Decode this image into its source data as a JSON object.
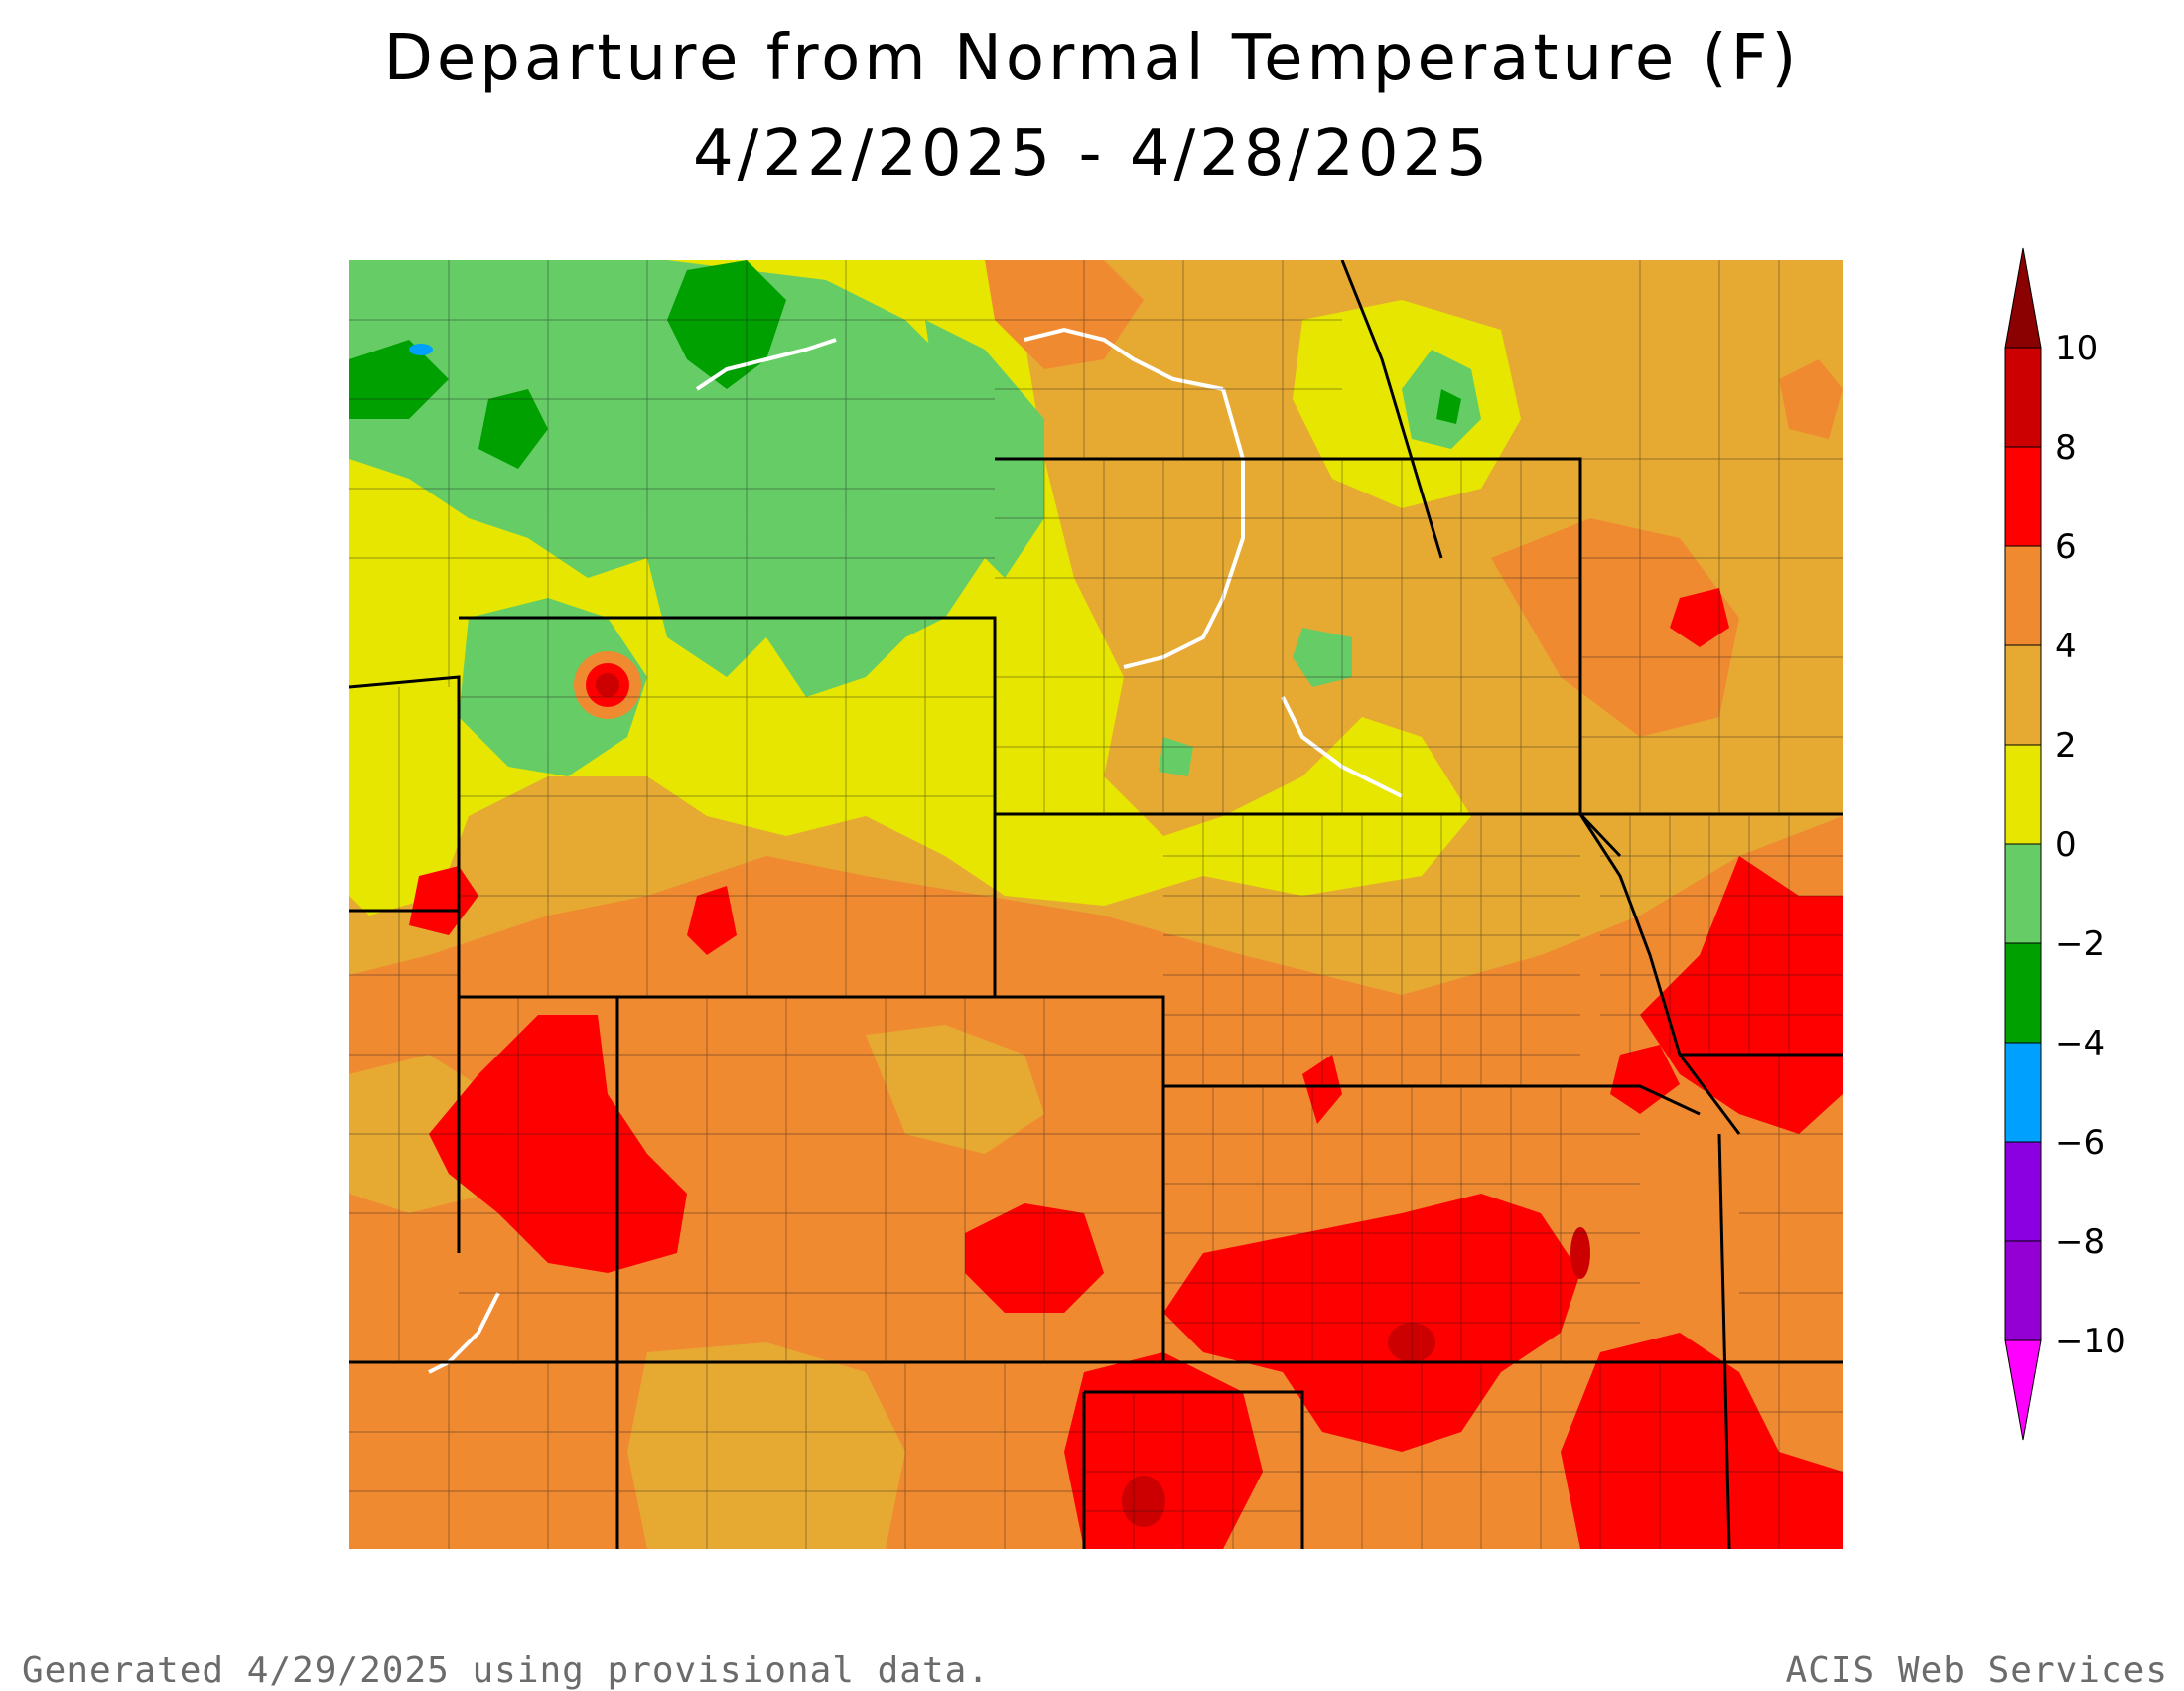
{
  "title": {
    "line1": "Departure from Normal Temperature (F)",
    "line2": "4/22/2025 - 4/28/2025"
  },
  "legend": {
    "labels": [
      "10",
      "8",
      "6",
      "4",
      "2",
      "0",
      "−2",
      "−4",
      "−6",
      "−8",
      "−10"
    ],
    "colors": [
      "#ff00ff",
      "#9400d3",
      "#8a00e0",
      "#00a0ff",
      "#00a000",
      "#66cc66",
      "#e6e600",
      "#e6aa33",
      "#f08a30",
      "#ff0000",
      "#cc0000",
      "#8b0000"
    ]
  },
  "footer": {
    "left": "Generated 4/29/2025 using provisional data.",
    "right": "ACIS Web Services"
  }
}
